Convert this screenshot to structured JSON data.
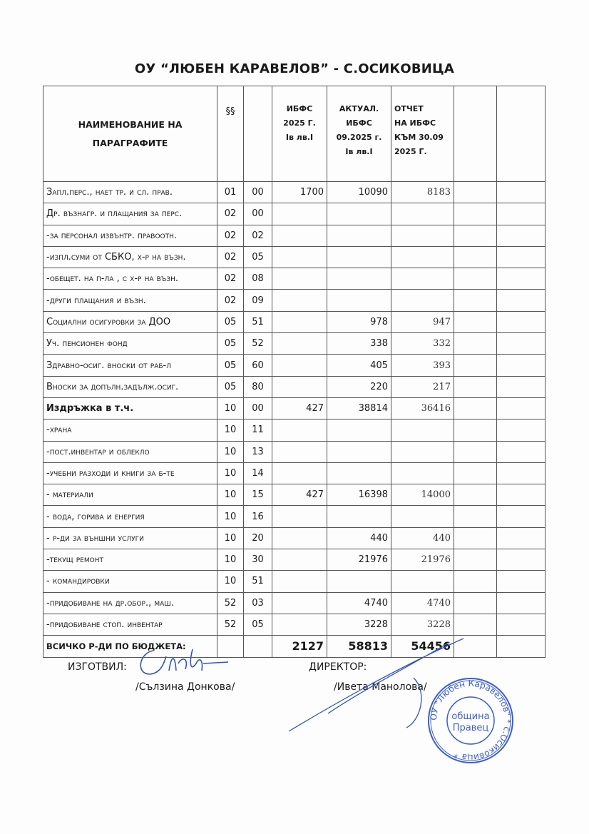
{
  "title": "ОУ “ЛЮБЕН КАРАВЕЛОВ” -  С.ОСИКОВИЦА",
  "header": {
    "name_line1": "НАИМЕНОВАНИЕ НА",
    "name_line2": "ПАРАГРАФИТЕ",
    "paragraph": "§§",
    "ibfs": [
      "ИБФС",
      "2025 Г.",
      "Iв лв.I"
    ],
    "actual": [
      "АКТУАЛ.",
      "ИБФС",
      "09.2025 г.",
      "Iв лв.I"
    ],
    "report": [
      "ОТЧЕТ",
      "НА ИБФС",
      "КЪМ 30.09",
      "2025 Г."
    ]
  },
  "rows": [
    {
      "name": "Запл.перс., нает   тр. и сл. прав.",
      "p1": "01",
      "p2": "00",
      "ibfs": "1700",
      "actual": "10090",
      "report": "8183"
    },
    {
      "name": "Др. възнагр. и плащания за перс.",
      "p1": "02",
      "p2": "00",
      "ibfs": "",
      "actual": "",
      "report": ""
    },
    {
      "name": "-за персонал извънтр. правоотн.",
      "p1": "02",
      "p2": "02",
      "ibfs": "",
      "actual": "",
      "report": ""
    },
    {
      "name": "-изпл.суми от СБКО,  х-р на възн.",
      "p1": "02",
      "p2": "05",
      "ibfs": "",
      "actual": "",
      "report": ""
    },
    {
      "name": "-обещет. на п-ла , с х-р на възн.",
      "p1": "02",
      "p2": "08",
      "ibfs": "",
      "actual": "",
      "report": ""
    },
    {
      "name": "-други плащания и възн.",
      "p1": "02",
      "p2": "09",
      "ibfs": "",
      "actual": "",
      "report": ""
    },
    {
      "name": "Социални осигуровки за ДОО",
      "p1": "05",
      "p2": "51",
      "ibfs": "",
      "actual": "978",
      "report": "947"
    },
    {
      "name": "Уч. пенсионен фонд",
      "p1": "05",
      "p2": "52",
      "ibfs": "",
      "actual": "338",
      "report": "332"
    },
    {
      "name": "Здравно-осиг. вноски от раб-л",
      "p1": "05",
      "p2": "60",
      "ibfs": "",
      "actual": "405",
      "report": "393"
    },
    {
      "name": "Вноски за допълн.задълж.осиг.",
      "p1": "05",
      "p2": "80",
      "ibfs": "",
      "actual": "220",
      "report": "217"
    },
    {
      "name": "Издръжка в т.ч.",
      "p1": "10",
      "p2": "00",
      "ibfs": "427",
      "actual": "38814",
      "report": "36416",
      "bold": true
    },
    {
      "name": "-храна",
      "p1": "10",
      "p2": "11",
      "ibfs": "",
      "actual": "",
      "report": ""
    },
    {
      "name": "-пост.инвентар и облекло",
      "p1": "10",
      "p2": "13",
      "ibfs": "",
      "actual": "",
      "report": ""
    },
    {
      "name": "-учебни разходи и книги за б-те",
      "p1": "10",
      "p2": "14",
      "ibfs": "",
      "actual": "",
      "report": ""
    },
    {
      "name": "- материали",
      "p1": "10",
      "p2": "15",
      "ibfs": "427",
      "actual": "16398",
      "report": "14000"
    },
    {
      "name": "- вода, горива и енергия",
      "p1": "10",
      "p2": "16",
      "ibfs": "",
      "actual": "",
      "report": ""
    },
    {
      "name": "- р-ди за външни услуги",
      "p1": "10",
      "p2": "20",
      "ibfs": "",
      "actual": "440",
      "report": "440"
    },
    {
      "name": "-текущ ремонт",
      "p1": "10",
      "p2": "30",
      "ibfs": "",
      "actual": "21976",
      "report": "21976"
    },
    {
      "name": "- командировки",
      "p1": "10",
      "p2": "51",
      "ibfs": "",
      "actual": "",
      "report": ""
    },
    {
      "name": "-придобиване  на др.обор., маш.",
      "p1": "52",
      "p2": "03",
      "ibfs": "",
      "actual": "4740",
      "report": "4740"
    },
    {
      "name": "-придобиване  стоп. инвентар",
      "p1": "52",
      "p2": "05",
      "ibfs": "",
      "actual": "3228",
      "report": "3228"
    }
  ],
  "total": {
    "name": "ВСИЧКО Р-ДИ ПО БЮДЖЕТА:",
    "ibfs": "2127",
    "actual": "58813",
    "report": "54456"
  },
  "signatures": {
    "prepared_label": "ИЗГОТВИЛ:",
    "prepared_name": "/Сълзина Донкова/",
    "director_label": "ДИРЕКТОР:",
    "director_name": "/Ивета Манолова/"
  },
  "stamp": {
    "outer_text": "ОУ \"Любен Каравелов\" * с.Осиковица *",
    "inner_line1": "община",
    "inner_line2": "Правец",
    "color": "#3b5fc8"
  },
  "ink_color": "#3355bb"
}
